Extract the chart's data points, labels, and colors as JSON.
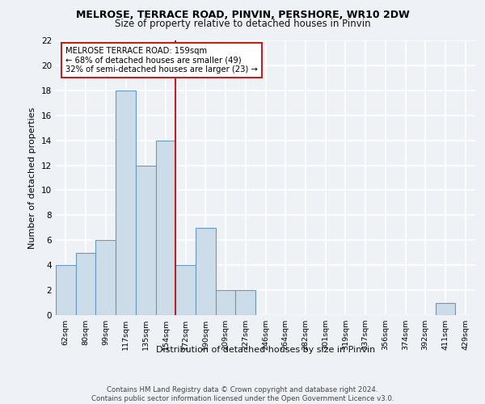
{
  "title_line1": "MELROSE, TERRACE ROAD, PINVIN, PERSHORE, WR10 2DW",
  "title_line2": "Size of property relative to detached houses in Pinvin",
  "xlabel": "Distribution of detached houses by size in Pinvin",
  "ylabel": "Number of detached properties",
  "categories": [
    "62sqm",
    "80sqm",
    "99sqm",
    "117sqm",
    "135sqm",
    "154sqm",
    "172sqm",
    "190sqm",
    "209sqm",
    "227sqm",
    "246sqm",
    "264sqm",
    "282sqm",
    "301sqm",
    "319sqm",
    "337sqm",
    "356sqm",
    "374sqm",
    "392sqm",
    "411sqm",
    "429sqm"
  ],
  "values": [
    4,
    5,
    6,
    18,
    12,
    14,
    4,
    7,
    2,
    2,
    0,
    0,
    0,
    0,
    0,
    0,
    0,
    0,
    0,
    1,
    0
  ],
  "bar_color": "#ccdce8",
  "bar_edge_color": "#6699bb",
  "annotation_text": "MELROSE TERRACE ROAD: 159sqm\n← 68% of detached houses are smaller (49)\n32% of semi-detached houses are larger (23) →",
  "vline_position": 5.5,
  "vline_color": "#bb2222",
  "annotation_box_color": "#ffffff",
  "annotation_box_edge_color": "#bb2222",
  "ylim": [
    0,
    22
  ],
  "yticks": [
    0,
    2,
    4,
    6,
    8,
    10,
    12,
    14,
    16,
    18,
    20,
    22
  ],
  "footer_text": "Contains HM Land Registry data © Crown copyright and database right 2024.\nContains public sector information licensed under the Open Government Licence v3.0.",
  "bg_color": "#eef2f7",
  "plot_bg_color": "#eef2f7",
  "grid_color": "#ffffff"
}
